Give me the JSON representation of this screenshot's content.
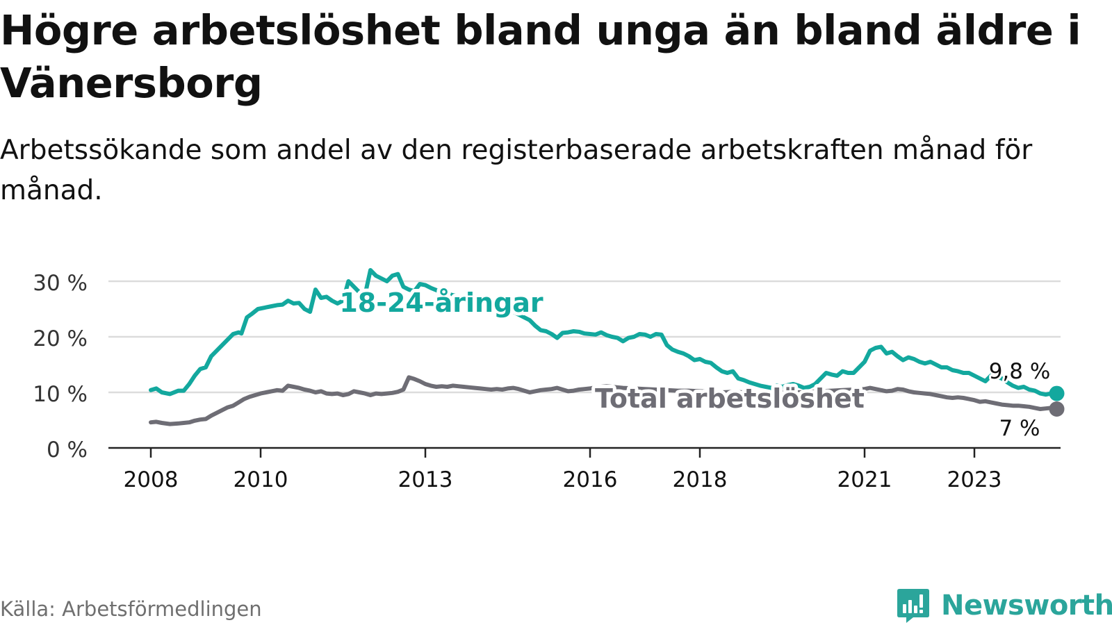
{
  "title": "Högre arbetslöshet bland unga än bland äldre i Vänersborg",
  "subtitle": "Arbetssökande som andel av den registerbaserade arbetskraften månad för månad.",
  "source": "Källa: Arbetsförmedlingen",
  "brand": "Newsworthy",
  "colors": {
    "youth": "#13a89e",
    "total": "#6e6d75",
    "grid": "#dcdcdc",
    "axis": "#222222",
    "brand": "#2ba59b"
  },
  "chart_data": {
    "type": "line",
    "ylim": [
      0,
      30
    ],
    "xlim": [
      2008,
      2024.5
    ],
    "yticks": [
      0,
      10,
      20,
      30
    ],
    "ytick_labels": [
      "0 %",
      "10 %",
      "20 %",
      "30 %"
    ],
    "xticks": [
      2008,
      2010,
      2013,
      2016,
      2018,
      2021,
      2023
    ],
    "xtick_labels": [
      "2008",
      "2010",
      "2013",
      "2016",
      "2018",
      "2021",
      "2023"
    ],
    "grid": true,
    "series": [
      {
        "name": "18-24-åringar",
        "key": "youth",
        "end_label": "9,8 %",
        "points": [
          [
            2008.0,
            10.4
          ],
          [
            2008.1,
            10.7
          ],
          [
            2008.2,
            10.0
          ],
          [
            2008.35,
            9.7
          ],
          [
            2008.5,
            10.3
          ],
          [
            2008.6,
            10.3
          ],
          [
            2008.7,
            11.5
          ],
          [
            2008.8,
            13.0
          ],
          [
            2008.9,
            14.2
          ],
          [
            2009.0,
            14.5
          ],
          [
            2009.1,
            16.5
          ],
          [
            2009.2,
            17.5
          ],
          [
            2009.3,
            18.5
          ],
          [
            2009.4,
            19.5
          ],
          [
            2009.5,
            20.5
          ],
          [
            2009.6,
            20.8
          ],
          [
            2009.65,
            20.6
          ],
          [
            2009.75,
            23.5
          ],
          [
            2009.85,
            24.2
          ],
          [
            2009.95,
            25.0
          ],
          [
            2010.1,
            25.3
          ],
          [
            2010.2,
            25.5
          ],
          [
            2010.3,
            25.7
          ],
          [
            2010.4,
            25.8
          ],
          [
            2010.5,
            26.5
          ],
          [
            2010.6,
            26.0
          ],
          [
            2010.7,
            26.1
          ],
          [
            2010.8,
            25.0
          ],
          [
            2010.9,
            24.5
          ],
          [
            2011.0,
            28.5
          ],
          [
            2011.1,
            27.0
          ],
          [
            2011.2,
            27.2
          ],
          [
            2011.3,
            26.5
          ],
          [
            2011.4,
            26.0
          ],
          [
            2011.5,
            26.5
          ],
          [
            2011.6,
            30.0
          ],
          [
            2011.7,
            29.0
          ],
          [
            2011.8,
            28.0
          ],
          [
            2011.9,
            27.5
          ],
          [
            2012.0,
            32.0
          ],
          [
            2012.1,
            31.0
          ],
          [
            2012.2,
            30.5
          ],
          [
            2012.3,
            30.0
          ],
          [
            2012.4,
            31.0
          ],
          [
            2012.5,
            31.3
          ],
          [
            2012.6,
            29.0
          ],
          [
            2012.7,
            28.5
          ],
          [
            2012.8,
            28.2
          ],
          [
            2012.9,
            29.5
          ],
          [
            2013.0,
            29.3
          ],
          [
            2013.1,
            28.8
          ],
          [
            2013.2,
            28.4
          ],
          [
            2013.3,
            28.0
          ],
          [
            2013.5,
            27.5
          ],
          [
            2013.7,
            27.0
          ],
          [
            2013.9,
            26.6
          ],
          [
            2014.1,
            26.0
          ],
          [
            2014.3,
            25.5
          ],
          [
            2014.5,
            25.0
          ],
          [
            2014.7,
            24.0
          ],
          [
            2014.9,
            23.0
          ],
          [
            2015.0,
            22.0
          ],
          [
            2015.1,
            21.2
          ],
          [
            2015.2,
            21.0
          ],
          [
            2015.3,
            20.5
          ],
          [
            2015.4,
            19.8
          ],
          [
            2015.5,
            20.7
          ],
          [
            2015.6,
            20.8
          ],
          [
            2015.7,
            21.0
          ],
          [
            2015.8,
            20.9
          ],
          [
            2015.9,
            20.6
          ],
          [
            2016.0,
            20.5
          ],
          [
            2016.1,
            20.4
          ],
          [
            2016.2,
            20.8
          ],
          [
            2016.3,
            20.3
          ],
          [
            2016.4,
            20.0
          ],
          [
            2016.5,
            19.8
          ],
          [
            2016.6,
            19.2
          ],
          [
            2016.7,
            19.8
          ],
          [
            2016.8,
            20.0
          ],
          [
            2016.9,
            20.5
          ],
          [
            2017.0,
            20.4
          ],
          [
            2017.1,
            20.0
          ],
          [
            2017.2,
            20.5
          ],
          [
            2017.3,
            20.4
          ],
          [
            2017.4,
            18.5
          ],
          [
            2017.5,
            17.7
          ],
          [
            2017.6,
            17.3
          ],
          [
            2017.7,
            17.0
          ],
          [
            2017.8,
            16.5
          ],
          [
            2017.9,
            15.8
          ],
          [
            2018.0,
            16.0
          ],
          [
            2018.1,
            15.5
          ],
          [
            2018.2,
            15.3
          ],
          [
            2018.3,
            14.5
          ],
          [
            2018.4,
            13.8
          ],
          [
            2018.5,
            13.5
          ],
          [
            2018.6,
            13.8
          ],
          [
            2018.7,
            12.5
          ],
          [
            2018.8,
            12.2
          ],
          [
            2018.9,
            11.8
          ],
          [
            2019.0,
            11.5
          ],
          [
            2019.1,
            11.2
          ],
          [
            2019.2,
            11.0
          ],
          [
            2019.3,
            10.8
          ],
          [
            2019.4,
            11.2
          ],
          [
            2019.5,
            11.0
          ],
          [
            2019.6,
            11.3
          ],
          [
            2019.7,
            11.5
          ],
          [
            2019.8,
            11.2
          ],
          [
            2019.9,
            10.8
          ],
          [
            2020.0,
            11.0
          ],
          [
            2020.1,
            11.5
          ],
          [
            2020.2,
            12.5
          ],
          [
            2020.3,
            13.5
          ],
          [
            2020.4,
            13.2
          ],
          [
            2020.5,
            13.0
          ],
          [
            2020.6,
            13.8
          ],
          [
            2020.7,
            13.5
          ],
          [
            2020.8,
            13.5
          ],
          [
            2020.9,
            14.5
          ],
          [
            2021.0,
            15.5
          ],
          [
            2021.1,
            17.5
          ],
          [
            2021.2,
            18.0
          ],
          [
            2021.3,
            18.2
          ],
          [
            2021.4,
            17.0
          ],
          [
            2021.5,
            17.3
          ],
          [
            2021.6,
            16.5
          ],
          [
            2021.7,
            15.8
          ],
          [
            2021.8,
            16.3
          ],
          [
            2021.9,
            16.0
          ],
          [
            2022.0,
            15.5
          ],
          [
            2022.1,
            15.2
          ],
          [
            2022.2,
            15.5
          ],
          [
            2022.3,
            15.0
          ],
          [
            2022.4,
            14.5
          ],
          [
            2022.5,
            14.5
          ],
          [
            2022.6,
            14.0
          ],
          [
            2022.7,
            13.8
          ],
          [
            2022.8,
            13.5
          ],
          [
            2022.9,
            13.5
          ],
          [
            2023.0,
            13.0
          ],
          [
            2023.1,
            12.5
          ],
          [
            2023.2,
            12.0
          ],
          [
            2023.3,
            13.0
          ],
          [
            2023.4,
            12.8
          ],
          [
            2023.5,
            12.5
          ],
          [
            2023.6,
            11.8
          ],
          [
            2023.7,
            11.2
          ],
          [
            2023.8,
            10.8
          ],
          [
            2023.9,
            11.0
          ],
          [
            2024.0,
            10.5
          ],
          [
            2024.1,
            10.3
          ],
          [
            2024.2,
            9.8
          ],
          [
            2024.3,
            9.6
          ],
          [
            2024.4,
            9.8
          ],
          [
            2024.5,
            9.8
          ]
        ]
      },
      {
        "name": "Total arbetslöshet",
        "key": "total",
        "end_label": "7 %",
        "points": [
          [
            2008.0,
            4.6
          ],
          [
            2008.1,
            4.7
          ],
          [
            2008.2,
            4.5
          ],
          [
            2008.35,
            4.3
          ],
          [
            2008.5,
            4.4
          ],
          [
            2008.6,
            4.5
          ],
          [
            2008.7,
            4.6
          ],
          [
            2008.8,
            4.9
          ],
          [
            2008.9,
            5.1
          ],
          [
            2009.0,
            5.2
          ],
          [
            2009.1,
            5.8
          ],
          [
            2009.2,
            6.3
          ],
          [
            2009.3,
            6.8
          ],
          [
            2009.4,
            7.3
          ],
          [
            2009.5,
            7.6
          ],
          [
            2009.6,
            8.2
          ],
          [
            2009.7,
            8.8
          ],
          [
            2009.8,
            9.2
          ],
          [
            2009.9,
            9.5
          ],
          [
            2010.0,
            9.8
          ],
          [
            2010.1,
            10.0
          ],
          [
            2010.2,
            10.2
          ],
          [
            2010.3,
            10.4
          ],
          [
            2010.4,
            10.3
          ],
          [
            2010.5,
            11.2
          ],
          [
            2010.6,
            11.0
          ],
          [
            2010.7,
            10.8
          ],
          [
            2010.8,
            10.5
          ],
          [
            2010.9,
            10.3
          ],
          [
            2011.0,
            10.0
          ],
          [
            2011.1,
            10.2
          ],
          [
            2011.2,
            9.8
          ],
          [
            2011.3,
            9.7
          ],
          [
            2011.4,
            9.8
          ],
          [
            2011.5,
            9.5
          ],
          [
            2011.6,
            9.7
          ],
          [
            2011.7,
            10.2
          ],
          [
            2011.8,
            10.0
          ],
          [
            2011.9,
            9.8
          ],
          [
            2012.0,
            9.5
          ],
          [
            2012.1,
            9.8
          ],
          [
            2012.2,
            9.7
          ],
          [
            2012.3,
            9.8
          ],
          [
            2012.4,
            9.9
          ],
          [
            2012.5,
            10.1
          ],
          [
            2012.6,
            10.5
          ],
          [
            2012.7,
            12.7
          ],
          [
            2012.8,
            12.4
          ],
          [
            2012.9,
            12.0
          ],
          [
            2013.0,
            11.5
          ],
          [
            2013.1,
            11.2
          ],
          [
            2013.2,
            11.0
          ],
          [
            2013.3,
            11.1
          ],
          [
            2013.4,
            11.0
          ],
          [
            2013.5,
            11.2
          ],
          [
            2013.6,
            11.1
          ],
          [
            2013.7,
            11.0
          ],
          [
            2013.8,
            10.9
          ],
          [
            2013.9,
            10.8
          ],
          [
            2014.0,
            10.7
          ],
          [
            2014.1,
            10.6
          ],
          [
            2014.2,
            10.5
          ],
          [
            2014.3,
            10.6
          ],
          [
            2014.4,
            10.5
          ],
          [
            2014.5,
            10.7
          ],
          [
            2014.6,
            10.8
          ],
          [
            2014.7,
            10.6
          ],
          [
            2014.8,
            10.3
          ],
          [
            2014.9,
            10.0
          ],
          [
            2015.0,
            10.2
          ],
          [
            2015.1,
            10.4
          ],
          [
            2015.2,
            10.5
          ],
          [
            2015.3,
            10.6
          ],
          [
            2015.4,
            10.8
          ],
          [
            2015.5,
            10.5
          ],
          [
            2015.6,
            10.2
          ],
          [
            2015.7,
            10.3
          ],
          [
            2015.8,
            10.5
          ],
          [
            2015.9,
            10.6
          ],
          [
            2016.0,
            10.7
          ],
          [
            2016.1,
            10.9
          ],
          [
            2016.2,
            11.0
          ],
          [
            2016.3,
            11.1
          ],
          [
            2016.4,
            11.0
          ],
          [
            2016.5,
            10.9
          ],
          [
            2016.6,
            10.8
          ],
          [
            2016.8,
            10.7
          ],
          [
            2017.0,
            10.6
          ],
          [
            2017.2,
            10.5
          ],
          [
            2017.4,
            10.4
          ],
          [
            2017.6,
            10.3
          ],
          [
            2017.8,
            10.3
          ],
          [
            2018.0,
            10.2
          ],
          [
            2018.2,
            10.1
          ],
          [
            2018.4,
            10.0
          ],
          [
            2018.6,
            10.1
          ],
          [
            2018.8,
            10.0
          ],
          [
            2019.0,
            9.9
          ],
          [
            2019.2,
            10.0
          ],
          [
            2019.4,
            10.1
          ],
          [
            2019.6,
            10.2
          ],
          [
            2019.8,
            10.0
          ],
          [
            2020.0,
            10.1
          ],
          [
            2020.2,
            10.2
          ],
          [
            2020.4,
            10.3
          ],
          [
            2020.6,
            10.4
          ],
          [
            2020.8,
            10.5
          ],
          [
            2021.0,
            10.6
          ],
          [
            2021.1,
            10.8
          ],
          [
            2021.2,
            10.6
          ],
          [
            2021.3,
            10.4
          ],
          [
            2021.4,
            10.2
          ],
          [
            2021.5,
            10.3
          ],
          [
            2021.6,
            10.6
          ],
          [
            2021.7,
            10.5
          ],
          [
            2021.8,
            10.2
          ],
          [
            2021.9,
            10.0
          ],
          [
            2022.0,
            9.9
          ],
          [
            2022.1,
            9.8
          ],
          [
            2022.2,
            9.7
          ],
          [
            2022.3,
            9.5
          ],
          [
            2022.4,
            9.3
          ],
          [
            2022.5,
            9.1
          ],
          [
            2022.6,
            9.0
          ],
          [
            2022.7,
            9.1
          ],
          [
            2022.8,
            9.0
          ],
          [
            2022.9,
            8.8
          ],
          [
            2023.0,
            8.6
          ],
          [
            2023.1,
            8.3
          ],
          [
            2023.2,
            8.4
          ],
          [
            2023.3,
            8.2
          ],
          [
            2023.4,
            8.0
          ],
          [
            2023.5,
            7.8
          ],
          [
            2023.6,
            7.7
          ],
          [
            2023.7,
            7.6
          ],
          [
            2023.8,
            7.6
          ],
          [
            2023.9,
            7.5
          ],
          [
            2024.0,
            7.4
          ],
          [
            2024.1,
            7.2
          ],
          [
            2024.2,
            7.0
          ],
          [
            2024.3,
            7.1
          ],
          [
            2024.4,
            7.2
          ],
          [
            2024.5,
            7.0
          ]
        ]
      }
    ]
  }
}
